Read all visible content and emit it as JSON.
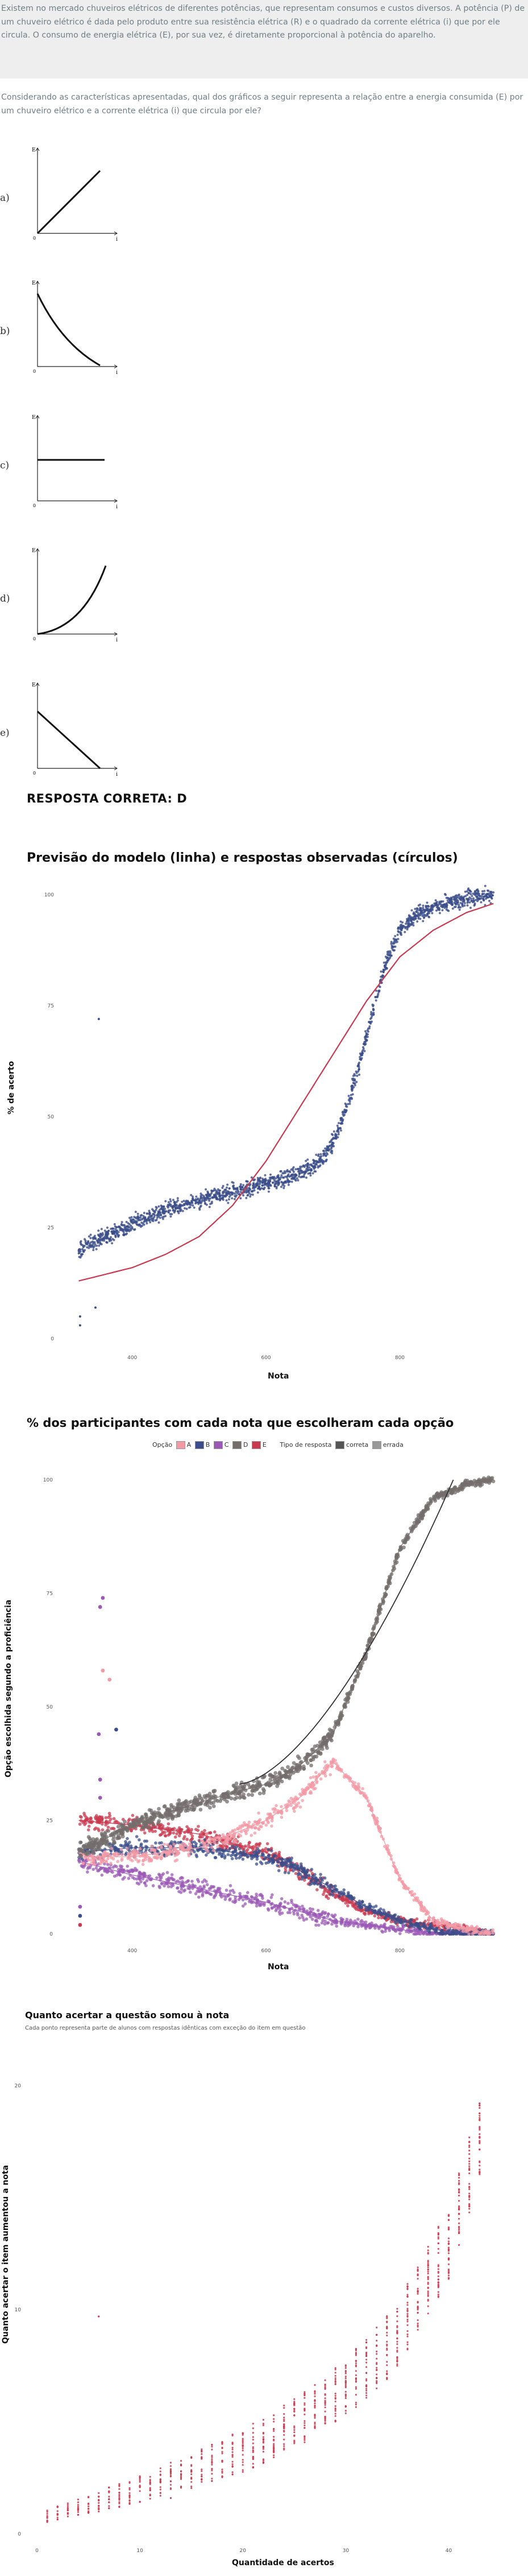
{
  "statement": "Existem no mercado chuveiros elétricos de diferentes potências, que representam consumos e custos diversos. A potência (P) de um chuveiro elétrico é dada pelo produto entre sua resistência elétrica (R) e o quadrado da corrente elétrica (i) que por ele circula. O consumo de energia elétrica (E), por sua vez, é diretamente proporcional à potência do aparelho.",
  "question": "Considerando as características apresentadas, qual dos gráficos a seguir representa a relação entre a energia consumida (E) por um chuveiro elétrico e a corrente elétrica (i) que circula por ele?",
  "options": [
    {
      "letter": "a)",
      "axis_y": "E",
      "axis_x": "i",
      "origin": "0",
      "shape": "line-up"
    },
    {
      "letter": "b)",
      "axis_y": "E",
      "axis_x": "i",
      "origin": "0",
      "shape": "decay"
    },
    {
      "letter": "c)",
      "axis_y": "E",
      "axis_x": "i",
      "origin": "0",
      "shape": "flat"
    },
    {
      "letter": "d)",
      "axis_y": "E",
      "axis_x": "i",
      "origin": "0",
      "shape": "parabola"
    },
    {
      "letter": "e)",
      "axis_y": "E",
      "axis_x": "i",
      "origin": "0",
      "shape": "line-down"
    }
  ],
  "answer": "RESPOSTA CORRETA: D",
  "colors": {
    "grey": "#736e6c",
    "blue": "#3b4d8a",
    "red": "#c9394f",
    "pink": "#f29aa6",
    "purple": "#9b59b6",
    "model": "#c9394f"
  },
  "charts": {
    "c1": {
      "title": "Previsão do modelo (linha) e respostas observadas (círculos)",
      "xlabel": "Nota",
      "ylabel": "% de acerto"
    },
    "c2": {
      "title": "% dos participantes com cada nota que escolheram cada opção",
      "xlabel": "Nota",
      "ylabel": "Opção escolhida segundo a proficiência",
      "legend_option_label": "Opção",
      "legend_options": [
        "A",
        "B",
        "C",
        "D",
        "E"
      ],
      "legend_type_label": "Tipo de resposta",
      "legend_types": [
        "correta",
        "errada"
      ]
    },
    "c3": {
      "title": "Quanto acertar a questão somou à nota",
      "subtitle": "Cada ponto representa parte de alunos com respostas idênticas com exceção do item em questão",
      "xlabel": "Quantidade de acertos",
      "ylabel": "Quanto acertar o item aumentou a nota"
    }
  },
  "chart_data": [
    {
      "type": "scatter",
      "title": "Previsão do modelo (linha) e respostas observadas (círculos)",
      "xlabel": "Nota",
      "ylabel": "% de acerto",
      "ylim": [
        0,
        100
      ],
      "y_ticks": [
        "100",
        "75",
        "50",
        "25",
        "0"
      ],
      "x_ticks": [
        "400",
        "600",
        "800"
      ],
      "xlim": [
        300,
        950
      ],
      "series": [
        {
          "kind": "observed",
          "x": [
            320,
            400,
            450,
            500,
            550,
            600,
            650,
            680,
            700,
            720,
            740,
            760,
            780,
            800,
            830,
            870,
            920
          ],
          "y": [
            20,
            26,
            29,
            31,
            33,
            35,
            37,
            40,
            44,
            52,
            62,
            74,
            85,
            92,
            96,
            98,
            100
          ]
        },
        {
          "kind": "model",
          "x": [
            320,
            400,
            450,
            500,
            550,
            600,
            650,
            700,
            750,
            800,
            850,
            900,
            940
          ],
          "y": [
            13,
            16,
            19,
            23,
            30,
            40,
            52,
            64,
            76,
            86,
            92,
            96,
            98
          ]
        }
      ]
    },
    {
      "type": "scatter",
      "title": "% dos participantes com cada nota que escolheram cada opção",
      "xlabel": "Nota",
      "ylabel": "Opção escolhida segundo a proficiência",
      "ylim": [
        0,
        100
      ],
      "y_ticks": [
        "100",
        "75",
        "50",
        "25",
        "0"
      ],
      "x_ticks": [
        "400",
        "600",
        "800"
      ],
      "xlim": [
        300,
        950
      ],
      "series": [
        {
          "name": "D",
          "x": [
            320,
            400,
            500,
            600,
            650,
            700,
            750,
            800,
            850,
            900,
            940
          ],
          "y": [
            18,
            24,
            29,
            33,
            37,
            44,
            62,
            85,
            96,
            99,
            100
          ]
        },
        {
          "name": "A",
          "x": [
            320,
            400,
            500,
            600,
            650,
            700,
            750,
            800,
            850,
            900,
            940
          ],
          "y": [
            17,
            17,
            19,
            25,
            30,
            38,
            30,
            12,
            3,
            1,
            0
          ]
        },
        {
          "name": "E",
          "x": [
            320,
            400,
            500,
            600,
            650,
            700,
            750,
            800,
            850,
            900,
            940
          ],
          "y": [
            25,
            24,
            22,
            18,
            14,
            9,
            5,
            3,
            2,
            1,
            0
          ]
        },
        {
          "name": "B",
          "x": [
            320,
            400,
            500,
            600,
            650,
            700,
            750,
            800,
            850,
            900,
            940
          ],
          "y": [
            18,
            19,
            19,
            17,
            14,
            10,
            6,
            3,
            1,
            0,
            0
          ]
        },
        {
          "name": "C",
          "x": [
            320,
            400,
            500,
            600,
            650,
            700,
            750,
            800,
            850,
            900,
            940
          ],
          "y": [
            16,
            13,
            10,
            7,
            5,
            3,
            2,
            1,
            0,
            0,
            0
          ]
        }
      ]
    },
    {
      "type": "scatter",
      "title": "Quanto acertar a questão somou à nota",
      "xlabel": "Quantidade de acertos",
      "ylabel": "Quanto acertar o item aumentou a nota",
      "y_ticks": [
        "20",
        "10",
        "0"
      ],
      "x_ticks": [
        "0",
        "10",
        "20",
        "30",
        "40"
      ],
      "xlim": [
        0,
        45
      ],
      "ylim": [
        0,
        21
      ],
      "series": [
        {
          "kind": "points",
          "x": [
            1,
            5,
            10,
            15,
            20,
            25,
            30,
            35,
            40,
            43
          ],
          "y": [
            0.8,
            1.3,
            2.0,
            2.8,
            3.7,
            4.9,
            6.5,
            8.8,
            13.0,
            17.5
          ]
        }
      ]
    }
  ]
}
